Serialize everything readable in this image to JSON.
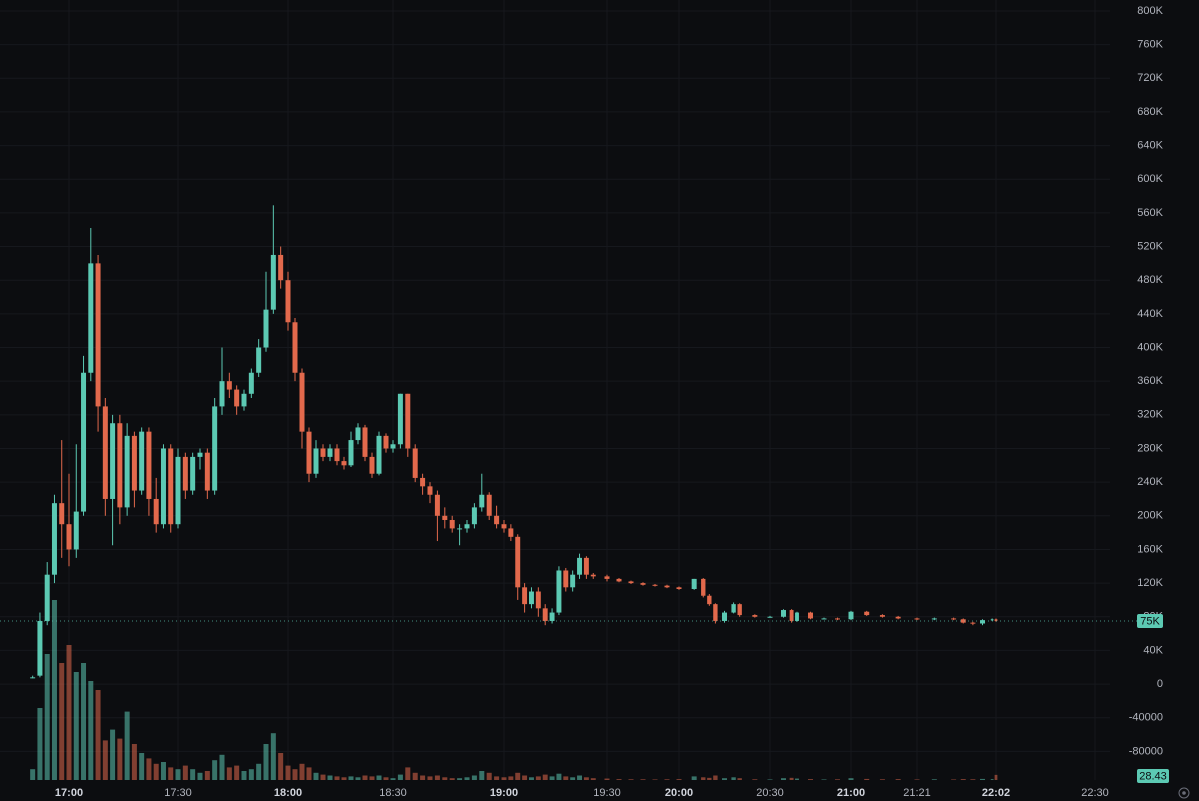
{
  "chart_data": {
    "type": "candlestick",
    "up_color": "#5cc9b3",
    "down_color": "#e2694c",
    "background": "#0c0d10",
    "grid": true,
    "x": [
      "16:50",
      "16:52",
      "16:54",
      "16:56",
      "16:58",
      "17:00",
      "17:02",
      "17:04",
      "17:06",
      "17:08",
      "17:10",
      "17:12",
      "17:14",
      "17:16",
      "17:18",
      "17:20",
      "17:22",
      "17:24",
      "17:26",
      "17:28",
      "17:30",
      "17:32",
      "17:34",
      "17:36",
      "17:38",
      "17:40",
      "17:42",
      "17:44",
      "17:46",
      "17:48",
      "17:50",
      "17:52",
      "17:54",
      "17:56",
      "17:58",
      "18:00",
      "18:02",
      "18:04",
      "18:06",
      "18:08",
      "18:10",
      "18:12",
      "18:14",
      "18:16",
      "18:18",
      "18:20",
      "18:22",
      "18:24",
      "18:26",
      "18:28",
      "18:30",
      "18:32",
      "18:34",
      "18:36",
      "18:38",
      "18:40",
      "18:42",
      "18:44",
      "18:46",
      "18:48",
      "18:50",
      "18:52",
      "18:54",
      "18:56",
      "18:58",
      "19:00",
      "19:02",
      "19:04",
      "19:06",
      "19:08",
      "19:10",
      "19:12",
      "19:14",
      "19:16",
      "19:18",
      "19:20",
      "19:22",
      "19:24",
      "19:26",
      "19:30",
      "19:35",
      "19:40",
      "19:45",
      "19:50",
      "19:55",
      "20:00",
      "20:05",
      "20:08",
      "20:10",
      "20:12",
      "20:15",
      "20:18",
      "20:20",
      "20:25",
      "20:30",
      "20:35",
      "20:38",
      "20:40",
      "20:45",
      "20:50",
      "20:55",
      "21:00",
      "21:05",
      "21:10",
      "21:15",
      "21:21",
      "21:30",
      "21:40",
      "21:45",
      "21:50",
      "21:55",
      "22:00",
      "22:02"
    ],
    "open": [
      8000,
      10000,
      75000,
      130000,
      215000,
      190000,
      160000,
      205000,
      370000,
      500000,
      330000,
      220000,
      310000,
      210000,
      295000,
      230000,
      300000,
      220000,
      190000,
      280000,
      190000,
      270000,
      230000,
      270000,
      275000,
      230000,
      330000,
      360000,
      350000,
      330000,
      345000,
      370000,
      400000,
      445000,
      510000,
      480000,
      430000,
      370000,
      300000,
      250000,
      280000,
      270000,
      280000,
      265000,
      260000,
      290000,
      305000,
      270000,
      250000,
      295000,
      280000,
      285000,
      345000,
      280000,
      245000,
      235000,
      225000,
      200000,
      195000,
      185000,
      185000,
      190000,
      210000,
      225000,
      200000,
      190000,
      185000,
      175000,
      115000,
      95000,
      110000,
      90000,
      75000,
      85000,
      135000,
      115000,
      130000,
      150000,
      130000,
      128000,
      125000,
      122000,
      120000,
      118000,
      117000,
      115000,
      113000,
      125000,
      105000,
      95000,
      75000,
      85000,
      95000,
      82000,
      80000,
      80000,
      88000,
      75000,
      85000,
      78000,
      78000,
      77000,
      86000,
      82000,
      80000,
      78000,
      77000,
      78000,
      77000,
      73000,
      72000,
      76000,
      77000
    ],
    "high": [
      10000,
      85000,
      145000,
      225000,
      290000,
      250000,
      285000,
      390000,
      542000,
      510000,
      340000,
      320000,
      320000,
      310000,
      300000,
      305000,
      305000,
      245000,
      285000,
      285000,
      280000,
      275000,
      275000,
      280000,
      280000,
      340000,
      400000,
      370000,
      355000,
      350000,
      375000,
      410000,
      490000,
      569000,
      520000,
      490000,
      435000,
      375000,
      305000,
      290000,
      285000,
      285000,
      285000,
      270000,
      300000,
      310000,
      308000,
      275000,
      300000,
      298000,
      290000,
      345000,
      345000,
      285000,
      250000,
      240000,
      230000,
      210000,
      200000,
      190000,
      195000,
      215000,
      250000,
      228000,
      212000,
      195000,
      190000,
      178000,
      120000,
      115000,
      115000,
      95000,
      90000,
      140000,
      138000,
      135000,
      155000,
      152000,
      132000,
      130000,
      126000,
      123000,
      121000,
      119000,
      118000,
      116000,
      125000,
      126000,
      107000,
      96000,
      87000,
      97000,
      96000,
      83000,
      81000,
      89000,
      89000,
      86000,
      86000,
      79000,
      79000,
      87000,
      87000,
      83000,
      81000,
      79000,
      79000,
      79000,
      78000,
      74000,
      77000,
      78000,
      78000
    ],
    "low": [
      7000,
      8000,
      70000,
      120000,
      150000,
      140000,
      150000,
      200000,
      360000,
      300000,
      200000,
      165000,
      190000,
      200000,
      210000,
      225000,
      200000,
      180000,
      185000,
      180000,
      185000,
      220000,
      225000,
      255000,
      220000,
      225000,
      320000,
      340000,
      320000,
      325000,
      340000,
      365000,
      395000,
      440000,
      470000,
      420000,
      360000,
      280000,
      240000,
      245000,
      265000,
      265000,
      260000,
      255000,
      258000,
      285000,
      265000,
      245000,
      248000,
      275000,
      275000,
      280000,
      270000,
      240000,
      225000,
      215000,
      170000,
      185000,
      180000,
      165000,
      180000,
      185000,
      205000,
      195000,
      185000,
      180000,
      170000,
      100000,
      85000,
      90000,
      80000,
      70000,
      72000,
      82000,
      110000,
      110000,
      125000,
      125000,
      125000,
      122000,
      121000,
      119000,
      117000,
      116000,
      114000,
      112000,
      112000,
      103000,
      93000,
      72000,
      73000,
      84000,
      80000,
      79000,
      79000,
      79000,
      73000,
      74000,
      77000,
      77000,
      76000,
      76000,
      81000,
      79000,
      77000,
      76000,
      76000,
      76000,
      72000,
      70000,
      70000,
      75000,
      74000
    ],
    "close": [
      8000,
      75000,
      130000,
      215000,
      190000,
      160000,
      205000,
      370000,
      500000,
      330000,
      220000,
      310000,
      210000,
      295000,
      230000,
      300000,
      220000,
      190000,
      280000,
      190000,
      270000,
      230000,
      270000,
      275000,
      230000,
      330000,
      360000,
      350000,
      330000,
      345000,
      370000,
      400000,
      445000,
      510000,
      480000,
      430000,
      370000,
      300000,
      250000,
      280000,
      270000,
      280000,
      265000,
      260000,
      290000,
      305000,
      270000,
      250000,
      295000,
      280000,
      285000,
      345000,
      280000,
      245000,
      235000,
      225000,
      200000,
      195000,
      185000,
      185000,
      190000,
      210000,
      225000,
      200000,
      190000,
      185000,
      175000,
      115000,
      95000,
      110000,
      90000,
      75000,
      85000,
      135000,
      115000,
      130000,
      150000,
      130000,
      128000,
      125000,
      122000,
      120000,
      118000,
      117000,
      115000,
      113000,
      125000,
      105000,
      95000,
      75000,
      85000,
      95000,
      82000,
      80000,
      80000,
      88000,
      75000,
      85000,
      78000,
      78000,
      77000,
      86000,
      82000,
      80000,
      78000,
      77000,
      78000,
      77000,
      73000,
      72000,
      76000,
      77000,
      75000
    ],
    "volume": [
      60,
      400,
      700,
      1000,
      650,
      750,
      600,
      650,
      550,
      500,
      220,
      280,
      230,
      380,
      200,
      150,
      120,
      90,
      100,
      70,
      60,
      80,
      60,
      40,
      50,
      110,
      140,
      70,
      80,
      50,
      60,
      90,
      200,
      260,
      150,
      80,
      60,
      90,
      70,
      40,
      30,
      25,
      20,
      15,
      20,
      15,
      25,
      20,
      25,
      15,
      10,
      30,
      70,
      40,
      25,
      20,
      25,
      15,
      10,
      10,
      15,
      25,
      50,
      40,
      20,
      15,
      20,
      40,
      25,
      15,
      20,
      30,
      20,
      35,
      20,
      15,
      25,
      15,
      10,
      8,
      5,
      4,
      4,
      3,
      4,
      5,
      20,
      15,
      12,
      25,
      10,
      15,
      10,
      4,
      3,
      10,
      12,
      8,
      5,
      3,
      4,
      10,
      6,
      4,
      5,
      3,
      4,
      3,
      5,
      4,
      6,
      5,
      28.43
    ],
    "ylim": [
      -114000,
      813000
    ],
    "yticks": [
      {
        "value": 800000,
        "label": "800K"
      },
      {
        "value": 760000,
        "label": "760K"
      },
      {
        "value": 720000,
        "label": "720K"
      },
      {
        "value": 680000,
        "label": "680K"
      },
      {
        "value": 640000,
        "label": "640K"
      },
      {
        "value": 600000,
        "label": "600K"
      },
      {
        "value": 560000,
        "label": "560K"
      },
      {
        "value": 520000,
        "label": "520K"
      },
      {
        "value": 480000,
        "label": "480K"
      },
      {
        "value": 440000,
        "label": "440K"
      },
      {
        "value": 400000,
        "label": "400K"
      },
      {
        "value": 360000,
        "label": "360K"
      },
      {
        "value": 320000,
        "label": "320K"
      },
      {
        "value": 280000,
        "label": "280K"
      },
      {
        "value": 240000,
        "label": "240K"
      },
      {
        "value": 200000,
        "label": "200K"
      },
      {
        "value": 160000,
        "label": "160K"
      },
      {
        "value": 120000,
        "label": "120K"
      },
      {
        "value": 80000,
        "label": "80K"
      },
      {
        "value": 40000,
        "label": "40K"
      },
      0,
      -40000,
      -80000
    ],
    "xticks": [
      "17:00",
      "17:30",
      "18:00",
      "18:30",
      "19:00",
      "19:30",
      "20:00",
      "20:30",
      "21:00",
      "21:21",
      "22:02",
      "22:30"
    ],
    "last_price": {
      "value": 75000,
      "label": "75K"
    }
  }
}
